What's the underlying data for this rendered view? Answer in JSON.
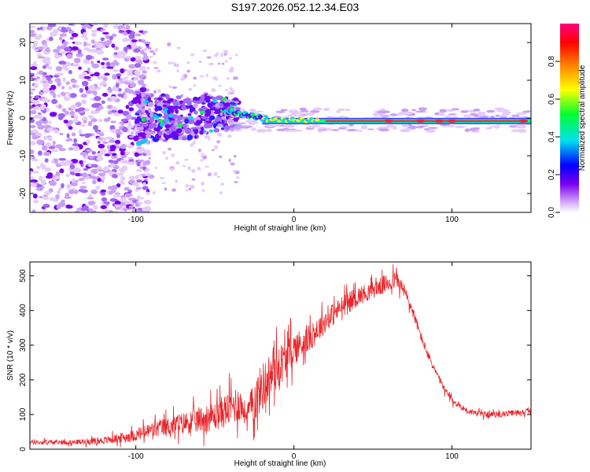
{
  "title": "S197.2026.052.12.34.E03",
  "colors": {
    "line": "#e8262a",
    "frame": "#000000",
    "background": "#ffffff"
  },
  "chart_data": [
    {
      "type": "heatmap",
      "xlabel": "Height of straight line (km)",
      "ylabel": "Frequency (Hz)",
      "xlim": [
        -167,
        150
      ],
      "ylim": [
        -25,
        25
      ],
      "xticks": [
        -100,
        0,
        100
      ],
      "yticks": [
        -20,
        -10,
        0,
        10,
        20
      ],
      "colorbar": {
        "label": "Normalized spectral amplitude",
        "range": [
          0.0,
          1.0
        ],
        "ticks": [
          0.0,
          0.2,
          0.4,
          0.6,
          0.8
        ],
        "colormap": [
          "#ffffff",
          "#d8b0f8",
          "#7a00f0",
          "#0000ff",
          "#00e0f0",
          "#00ff30",
          "#ffff00",
          "#ff8000",
          "#ff0000",
          "#ff0080"
        ]
      },
      "description_of_intensity": "Scattered low-amplitude speckle below -100 km; signal concentrated near 0 Hz from -90 km onward, narrowing with height; strongest amplitude (~0.9-1.0) along ~-1 Hz between 20 and 150 km"
    },
    {
      "type": "line",
      "xlabel": "Height of straight line (km)",
      "ylabel": "SNR (10 * v/v)",
      "xlim": [
        -167,
        150
      ],
      "ylim": [
        0,
        540
      ],
      "xticks": [
        -100,
        0,
        100
      ],
      "yticks": [
        0,
        100,
        200,
        300,
        400,
        500
      ],
      "series": [
        {
          "name": "SNR",
          "x": [
            -167,
            -140,
            -120,
            -100,
            -90,
            -80,
            -70,
            -60,
            -50,
            -40,
            -35,
            -30,
            -25,
            -20,
            -15,
            -10,
            -5,
            0,
            10,
            20,
            30,
            40,
            50,
            60,
            65,
            70,
            75,
            80,
            85,
            90,
            95,
            100,
            110,
            120,
            130,
            140,
            150
          ],
          "values": [
            20,
            20,
            25,
            40,
            55,
            65,
            75,
            85,
            95,
            120,
            135,
            100,
            140,
            180,
            210,
            240,
            260,
            290,
            320,
            370,
            410,
            440,
            460,
            480,
            490,
            455,
            400,
            330,
            270,
            220,
            175,
            140,
            110,
            100,
            100,
            105,
            110
          ],
          "noise_amplitude": [
            10,
            10,
            15,
            25,
            35,
            40,
            45,
            55,
            60,
            75,
            80,
            40,
            90,
            100,
            100,
            90,
            80,
            70,
            55,
            50,
            45,
            40,
            35,
            40,
            35,
            30,
            25,
            20,
            18,
            15,
            15,
            14,
            12,
            12,
            12,
            12,
            12
          ]
        }
      ]
    }
  ]
}
